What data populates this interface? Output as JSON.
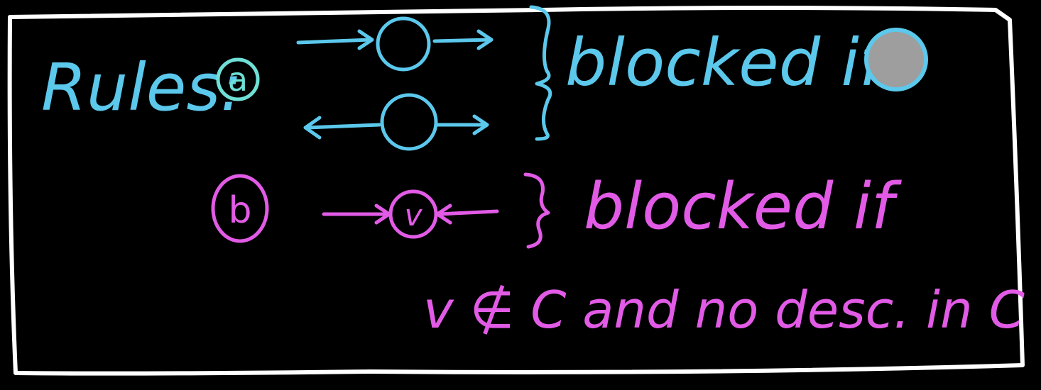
{
  "colors": {
    "background": "#000000",
    "frame": "#ffffff",
    "rule_a": "#5bc8ec",
    "rule_b": "#e25be6",
    "observed_fill": "#9e9e9e"
  },
  "heading": "Rules:",
  "rule_a": {
    "marker": "a",
    "patterns": [
      {
        "description": "chain: arrow into node, arrow out of node",
        "icon": "chain-arrows-icon"
      },
      {
        "description": "fork: arrow out of node both directions",
        "icon": "fork-arrows-icon"
      }
    ],
    "condition": "blocked if",
    "condition_icon": "observed-node-icon"
  },
  "rule_b": {
    "marker": "b",
    "pattern_node_label": "v",
    "pattern_icon": "collider-arrows-icon",
    "condition": "blocked if",
    "condition_line2": "v ∉ C and no desc. in C"
  }
}
